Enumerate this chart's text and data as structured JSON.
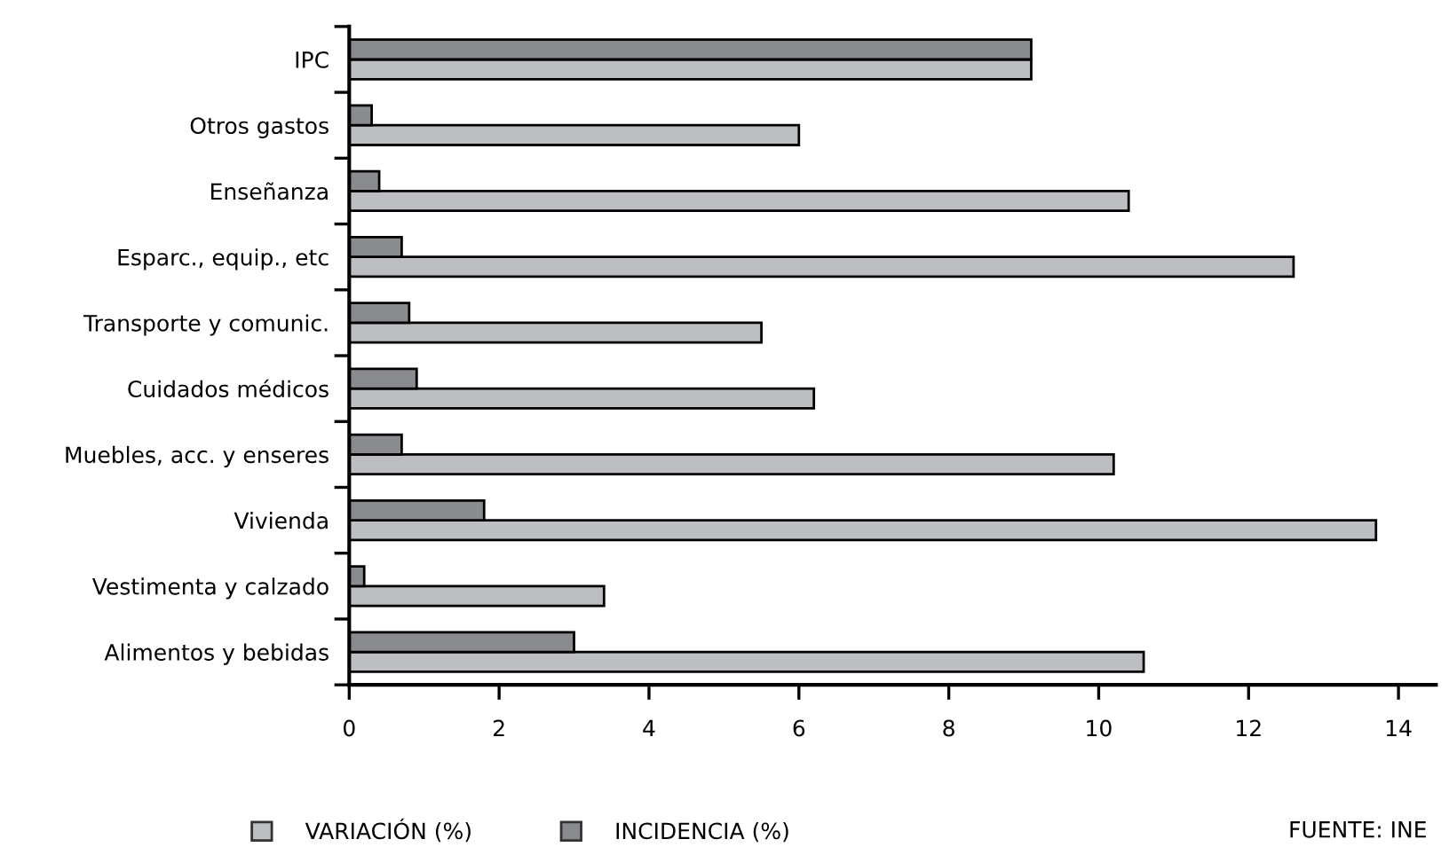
{
  "chart_data": {
    "type": "bar",
    "orientation": "horizontal",
    "categories": [
      "IPC",
      "Otros gastos",
      "Enseñanza",
      "Esparc., equip., etc",
      "Transporte y comunic.",
      "Cuidados médicos",
      "Muebles, acc. y enseres",
      "Vivienda",
      "Vestimenta y calzado",
      "Alimentos y bebidas"
    ],
    "series": [
      {
        "name": "VARIACIÓN (%)",
        "color": "#bdbec2",
        "values": [
          9.1,
          6.0,
          10.4,
          12.6,
          5.5,
          6.2,
          10.2,
          13.7,
          3.4,
          10.6
        ]
      },
      {
        "name": "INCIDENCIA (%)",
        "color": "#8a8b8f",
        "values": [
          9.1,
          0.3,
          0.4,
          0.7,
          0.8,
          0.9,
          0.7,
          1.8,
          0.2,
          3.0
        ]
      }
    ],
    "xlim": [
      0,
      14.5
    ],
    "xticks": [
      0,
      2,
      4,
      6,
      8,
      10,
      12,
      14
    ],
    "legend": "bottom",
    "grid": false,
    "annotations": [
      "FUENTE: INE"
    ]
  }
}
